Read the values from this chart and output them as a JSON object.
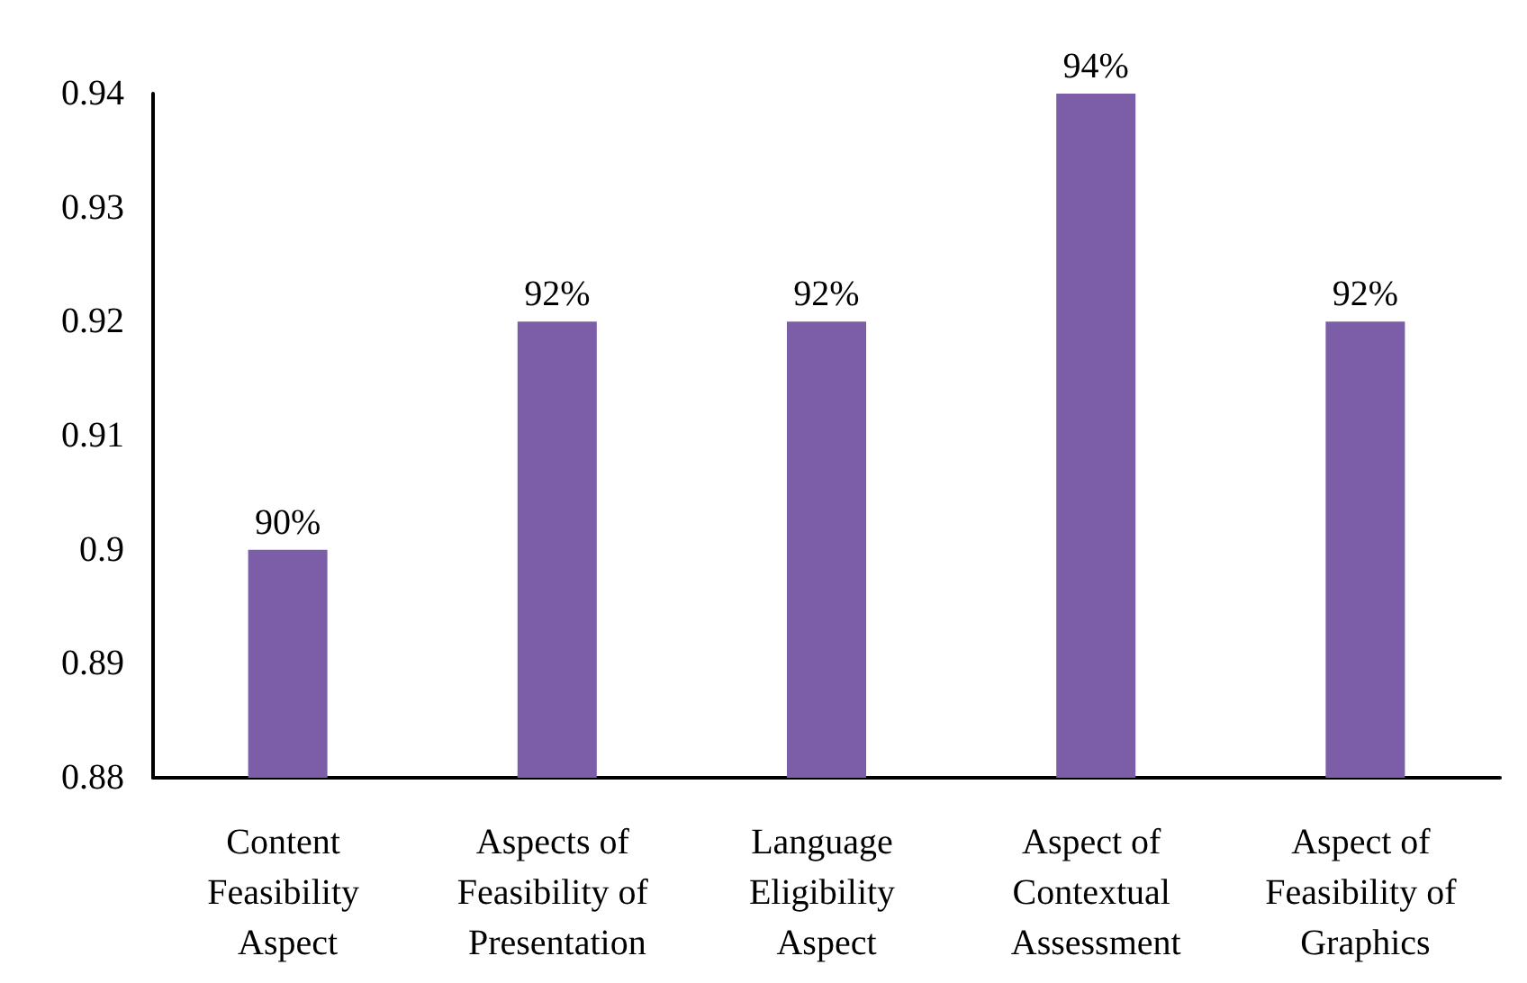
{
  "chart_data": {
    "type": "bar",
    "categories": [
      "Content Feasibility Aspect",
      "Aspects of Feasibility of Presentation",
      "Language Eligibility Aspect",
      "Aspect of Contextual Assessment",
      "Aspect of Feasibility of Graphics"
    ],
    "values": [
      0.9,
      0.92,
      0.92,
      0.94,
      0.92
    ],
    "value_labels": [
      "90%",
      "92%",
      "92%",
      "94%",
      "92%"
    ],
    "color": "#7b5ea7",
    "ylim": [
      0.88,
      0.94
    ],
    "yticks": [
      0.88,
      0.89,
      0.9,
      0.91,
      0.92,
      0.93,
      0.94
    ]
  }
}
